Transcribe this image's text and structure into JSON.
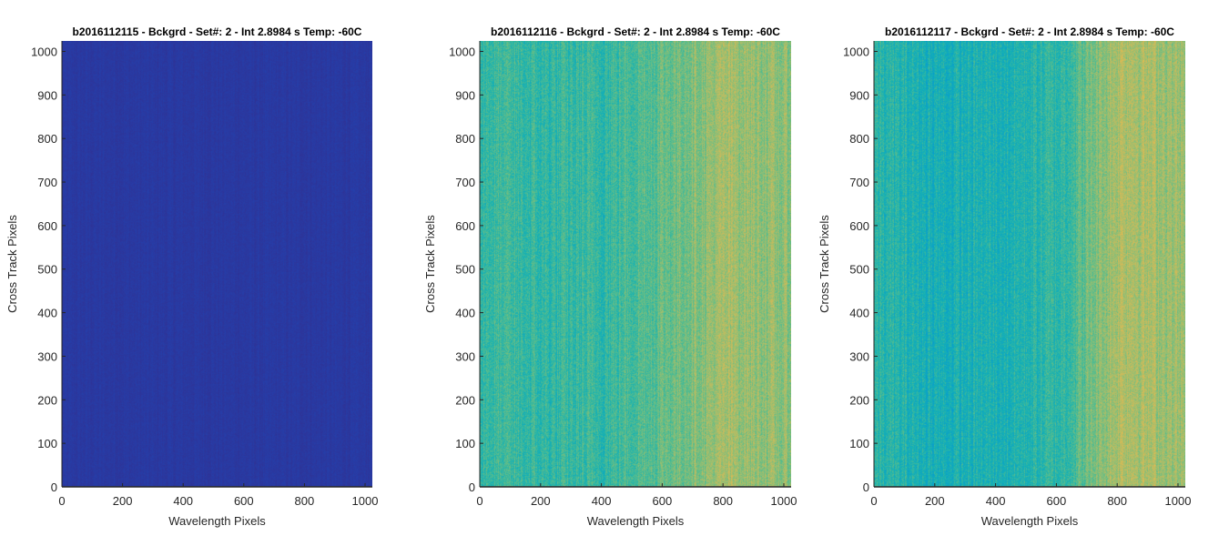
{
  "chart_data": [
    {
      "type": "heatmap",
      "title": "b2016112115 - Bckgrd - Set#: 2 - Int 2.8984 s Temp: -60C",
      "xlabel": "Wavelength Pixels",
      "ylabel": "Cross Track Pixels",
      "xlim": [
        0,
        1024
      ],
      "ylim": [
        0,
        1024
      ],
      "xticks": [
        0,
        200,
        400,
        600,
        800,
        1000
      ],
      "yticks": [
        0,
        100,
        200,
        300,
        400,
        500,
        600,
        700,
        800,
        900,
        1000
      ],
      "colormap": "parula",
      "intensity_profile": [
        0.03,
        0.03,
        0.03,
        0.03,
        0.03,
        0.03
      ],
      "noise": 0.015
    },
    {
      "type": "heatmap",
      "title": "b2016112116 - Bckgrd - Set#: 2 - Int 2.8984 s Temp: -60C",
      "xlabel": "Wavelength Pixels",
      "ylabel": "Cross Track Pixels",
      "xlim": [
        0,
        1024
      ],
      "ylim": [
        0,
        1024
      ],
      "xticks": [
        0,
        200,
        400,
        600,
        800,
        1000
      ],
      "yticks": [
        0,
        100,
        200,
        300,
        400,
        500,
        600,
        700,
        800,
        900,
        1000
      ],
      "colormap": "parula",
      "intensity_profile": [
        0.46,
        0.44,
        0.45,
        0.52,
        0.6,
        0.56
      ],
      "noise": 0.12
    },
    {
      "type": "heatmap",
      "title": "b2016112117 - Bckgrd - Set#: 2 - Int 2.8984 s Temp: -60C",
      "xlabel": "Wavelength Pixels",
      "ylabel": "Cross Track Pixels",
      "xlim": [
        0,
        1024
      ],
      "ylim": [
        0,
        1024
      ],
      "xticks": [
        0,
        200,
        400,
        600,
        800,
        1000
      ],
      "yticks": [
        0,
        100,
        200,
        300,
        400,
        500,
        600,
        700,
        800,
        900,
        1000
      ],
      "colormap": "parula",
      "intensity_profile": [
        0.43,
        0.39,
        0.4,
        0.44,
        0.63,
        0.58
      ],
      "noise": 0.12
    }
  ]
}
